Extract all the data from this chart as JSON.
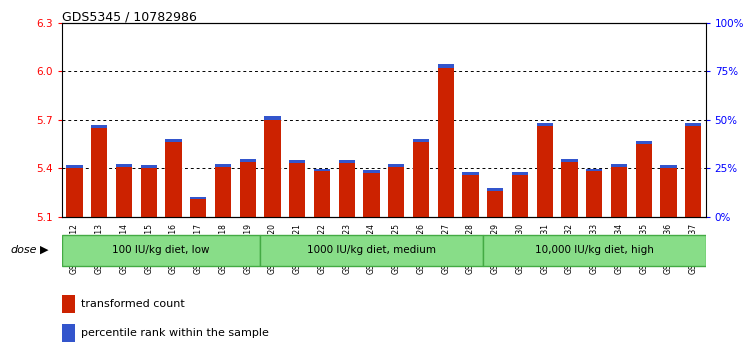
{
  "title": "GDS5345 / 10782986",
  "samples": [
    "GSM1502412",
    "GSM1502413",
    "GSM1502414",
    "GSM1502415",
    "GSM1502416",
    "GSM1502417",
    "GSM1502418",
    "GSM1502419",
    "GSM1502420",
    "GSM1502421",
    "GSM1502422",
    "GSM1502423",
    "GSM1502424",
    "GSM1502425",
    "GSM1502426",
    "GSM1502427",
    "GSM1502428",
    "GSM1502429",
    "GSM1502430",
    "GSM1502431",
    "GSM1502432",
    "GSM1502433",
    "GSM1502434",
    "GSM1502435",
    "GSM1502436",
    "GSM1502437"
  ],
  "red_values": [
    5.4,
    5.65,
    5.41,
    5.4,
    5.56,
    5.21,
    5.41,
    5.44,
    5.7,
    5.43,
    5.38,
    5.43,
    5.37,
    5.41,
    5.56,
    6.02,
    5.36,
    5.26,
    5.36,
    5.66,
    5.44,
    5.38,
    5.41,
    5.55,
    5.4,
    5.66
  ],
  "blue_heights": [
    0.018,
    0.02,
    0.018,
    0.018,
    0.018,
    0.012,
    0.018,
    0.018,
    0.022,
    0.018,
    0.018,
    0.02,
    0.018,
    0.018,
    0.02,
    0.025,
    0.016,
    0.015,
    0.015,
    0.02,
    0.02,
    0.018,
    0.018,
    0.02,
    0.018,
    0.02
  ],
  "groups": [
    {
      "label": "100 IU/kg diet, low",
      "start": 0,
      "end": 8
    },
    {
      "label": "1000 IU/kg diet, medium",
      "start": 8,
      "end": 17
    },
    {
      "label": "10,000 IU/kg diet, high",
      "start": 17,
      "end": 26
    }
  ],
  "ymin": 5.1,
  "ymax": 6.3,
  "yticks": [
    5.1,
    5.4,
    5.7,
    6.0,
    6.3
  ],
  "right_yticks_vals": [
    0,
    25,
    50,
    75,
    100
  ],
  "right_yticks_pos": [
    5.1,
    5.4,
    5.7,
    6.0,
    6.3
  ],
  "bar_color_red": "#cc2200",
  "bar_color_blue": "#3355cc",
  "group_color": "#88dd88",
  "group_border_color": "#44aa44"
}
